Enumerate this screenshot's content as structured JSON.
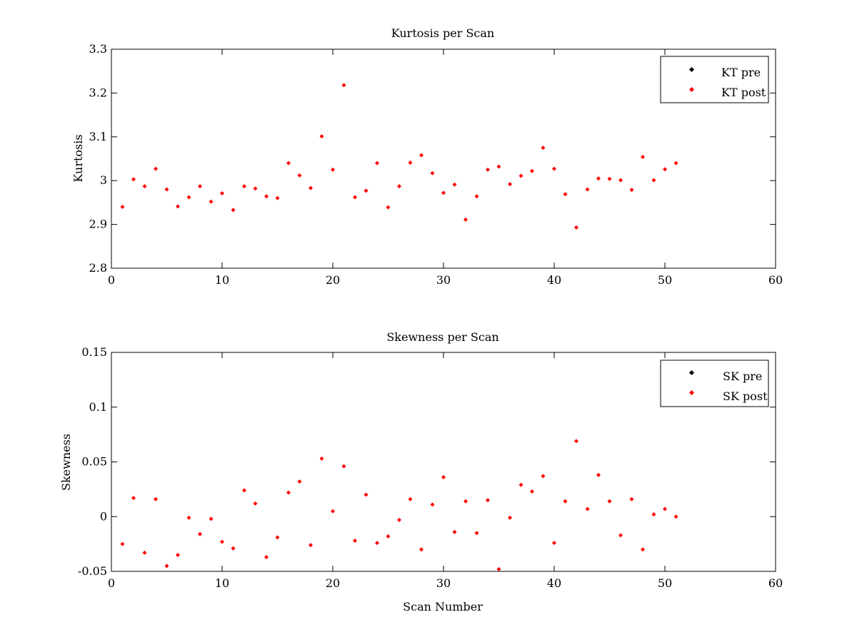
{
  "chart_data": [
    {
      "type": "scatter",
      "title": "Kurtosis per Scan",
      "xlabel": "",
      "ylabel": "Kurtosis",
      "xlim": [
        0,
        60
      ],
      "ylim": [
        2.8,
        3.3
      ],
      "xticks": [
        "0",
        "10",
        "20",
        "30",
        "40",
        "50",
        "60"
      ],
      "yticks": [
        "2.8",
        "2.9",
        "3",
        "3.1",
        "3.2",
        "3.3"
      ],
      "legend_position": "top-right",
      "grid": false,
      "series": [
        {
          "name": "KT pre",
          "color": "#000000",
          "x": [],
          "y": []
        },
        {
          "name": "KT post",
          "color": "#ff0000",
          "x": [
            1,
            2,
            3,
            4,
            5,
            6,
            7,
            8,
            9,
            10,
            11,
            12,
            13,
            14,
            15,
            16,
            17,
            18,
            19,
            20,
            21,
            22,
            23,
            24,
            25,
            26,
            27,
            28,
            29,
            30,
            31,
            32,
            33,
            34,
            35,
            36,
            37,
            38,
            39,
            40,
            41,
            42,
            43,
            44,
            45,
            46,
            47,
            48,
            49,
            50,
            51
          ],
          "y": [
            2.94,
            3.003,
            2.987,
            3.027,
            2.98,
            2.941,
            2.962,
            2.987,
            2.952,
            2.971,
            2.933,
            2.987,
            2.982,
            2.964,
            2.96,
            3.04,
            3.012,
            2.983,
            3.101,
            3.025,
            3.218,
            2.962,
            2.977,
            3.04,
            2.939,
            2.987,
            3.041,
            3.058,
            3.017,
            2.972,
            2.991,
            2.911,
            2.964,
            3.025,
            3.032,
            2.992,
            3.011,
            3.022,
            3.075,
            3.027,
            2.969,
            2.893,
            2.98,
            3.005,
            3.004,
            3.001,
            2.979,
            3.054,
            3.001,
            3.026,
            3.04
          ]
        }
      ]
    },
    {
      "type": "scatter",
      "title": "Skewness per Scan",
      "xlabel": "Scan Number",
      "ylabel": "Skewness",
      "xlim": [
        0,
        60
      ],
      "ylim": [
        -0.05,
        0.15
      ],
      "xticks": [
        "0",
        "10",
        "20",
        "30",
        "40",
        "50",
        "60"
      ],
      "yticks": [
        "-0.05",
        "0",
        "0.05",
        "0.1",
        "0.15"
      ],
      "legend_position": "top-right",
      "grid": false,
      "series": [
        {
          "name": "SK pre",
          "color": "#000000",
          "x": [],
          "y": []
        },
        {
          "name": "SK post",
          "color": "#ff0000",
          "x": [
            1,
            2,
            3,
            4,
            5,
            6,
            7,
            8,
            9,
            10,
            11,
            12,
            13,
            14,
            15,
            16,
            17,
            18,
            19,
            20,
            21,
            22,
            23,
            24,
            25,
            26,
            27,
            28,
            29,
            30,
            31,
            32,
            33,
            34,
            35,
            36,
            37,
            38,
            39,
            40,
            41,
            42,
            43,
            44,
            45,
            46,
            47,
            48,
            49,
            50,
            51
          ],
          "y": [
            -0.025,
            0.017,
            -0.033,
            0.016,
            -0.045,
            -0.035,
            -0.001,
            -0.016,
            -0.002,
            -0.023,
            -0.029,
            0.024,
            0.012,
            -0.037,
            -0.019,
            0.022,
            0.032,
            -0.026,
            0.053,
            0.005,
            0.046,
            -0.022,
            0.02,
            -0.024,
            -0.018,
            -0.003,
            0.016,
            -0.03,
            0.011,
            0.036,
            -0.014,
            0.014,
            -0.015,
            0.015,
            -0.048,
            -0.001,
            0.029,
            0.023,
            0.037,
            -0.024,
            0.014,
            0.069,
            0.007,
            0.038,
            0.014,
            -0.017,
            0.016,
            -0.03,
            0.002,
            0.007,
            0
          ]
        }
      ]
    }
  ]
}
